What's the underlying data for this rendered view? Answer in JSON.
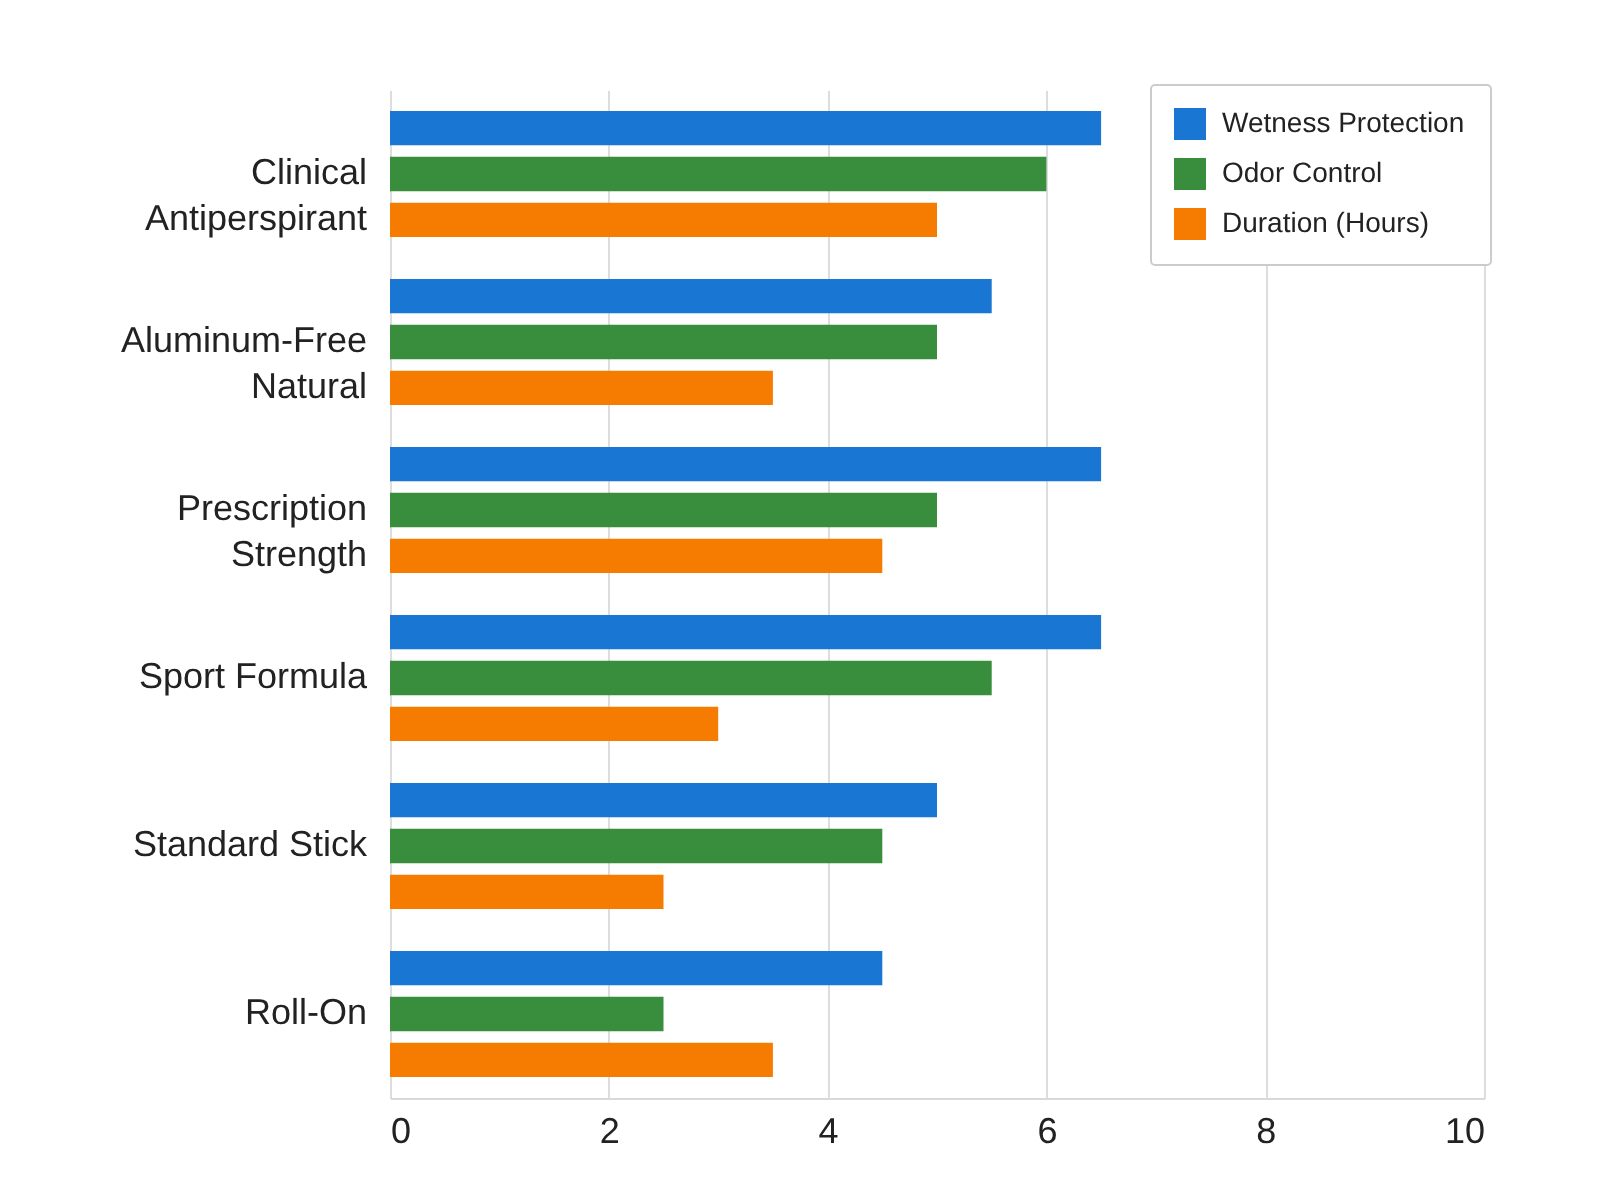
{
  "chart_data": {
    "type": "bar",
    "orientation": "horizontal",
    "categories": [
      "Clinical Antiperspirant",
      "Aluminum-Free Natural",
      "Prescription Strength",
      "Sport Formula",
      "Standard Stick",
      "Roll-On"
    ],
    "series": [
      {
        "name": "Wetness Protection",
        "color": "#1976d2",
        "values": [
          6.5,
          5.5,
          6.5,
          6.5,
          5,
          4.5
        ]
      },
      {
        "name": "Odor Control",
        "color": "#388e3c",
        "values": [
          6,
          5,
          5,
          5.5,
          4.5,
          2.5
        ]
      },
      {
        "name": "Duration (Hours)",
        "color": "#f57c00",
        "values": [
          5,
          3.5,
          4.5,
          3,
          2.5,
          3.5
        ]
      }
    ],
    "xlim": [
      0,
      10
    ],
    "xticks": [
      0,
      2,
      4,
      6,
      8,
      10
    ],
    "grid": "x",
    "legend": "top right"
  }
}
